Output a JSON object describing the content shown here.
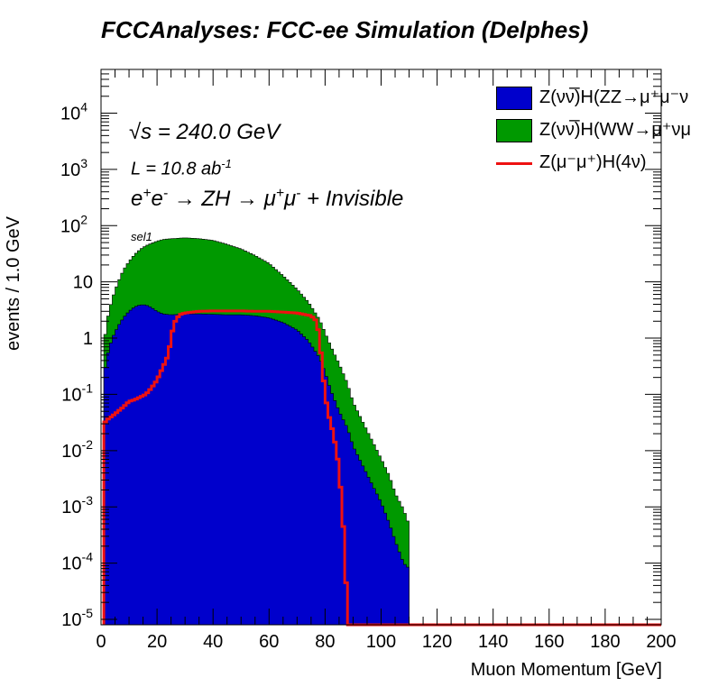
{
  "title": "FCCAnalyses: FCC-ee Simulation (Delphes)",
  "annotations": {
    "sqrt_s": "√s = 240.0 GeV",
    "lumi_text": "L = 10.8 ab",
    "lumi_exp": "-1",
    "process": {
      "e": "e",
      "ep": "+",
      "e2": "e",
      "em": "-",
      "arrow1": "→ ZH",
      "arrow2": "→ μ",
      "mp": "+",
      "mu": "μ",
      "mm": "-",
      "rest": "+ Invisible"
    },
    "selection": "sel1"
  },
  "legend": [
    {
      "label": "Z(νν̅)H(ZZ→μ⁺μ⁻ν",
      "color": "#0000cc",
      "style": "fill"
    },
    {
      "label": "Z(νν̅)H(WW→μ⁺νμ",
      "color": "#009900",
      "style": "fill"
    },
    {
      "label": "Z(μ⁻μ⁺)H(4ν)",
      "color": "#ee1111",
      "style": "line"
    }
  ],
  "chart_data": {
    "type": "area",
    "title": "FCCAnalyses: FCC-ee Simulation (Delphes)",
    "xlabel": "Muon Momentum [GeV]",
    "ylabel": "events / 1.0 GeV",
    "xlim": [
      0,
      200
    ],
    "ylim": [
      8e-06,
      60000
    ],
    "yscale": "log",
    "xticks": [
      "0",
      "20",
      "40",
      "60",
      "80",
      "100",
      "120",
      "140",
      "160",
      "180",
      "200"
    ],
    "yticks": [
      {
        "base": "10",
        "exp": "-5",
        "value": 1e-05
      },
      {
        "base": "10",
        "exp": "-4",
        "value": 0.0001
      },
      {
        "base": "10",
        "exp": "-3",
        "value": 0.001
      },
      {
        "base": "10",
        "exp": "-2",
        "value": 0.01
      },
      {
        "base": "10",
        "exp": "-1",
        "value": 0.1
      },
      {
        "base": "1",
        "exp": "",
        "value": 1
      },
      {
        "base": "10",
        "exp": "",
        "value": 10
      },
      {
        "base": "10",
        "exp": "2",
        "value": 100
      },
      {
        "base": "10",
        "exp": "3",
        "value": 1000
      },
      {
        "base": "10",
        "exp": "4",
        "value": 10000
      }
    ],
    "grid": false,
    "legend_position": "top-right",
    "stacked": true,
    "series": [
      {
        "name": "Z(νν̅)H(ZZ→μ⁺μ⁻ν",
        "color": "#0000cc",
        "x": [
          1,
          2,
          4,
          6,
          8,
          10,
          12,
          14,
          16,
          18,
          20,
          22,
          25,
          30,
          35,
          40,
          45,
          50,
          55,
          60,
          65,
          70,
          74,
          78,
          80,
          82,
          85,
          88,
          90,
          93,
          96,
          100,
          103,
          105,
          108,
          110
        ],
        "values": [
          0.2,
          0.45,
          1.0,
          1.6,
          2.3,
          3.0,
          3.6,
          3.9,
          3.9,
          3.5,
          3.0,
          2.7,
          2.6,
          2.7,
          2.7,
          2.65,
          2.6,
          2.6,
          2.5,
          2.3,
          1.9,
          1.4,
          0.9,
          0.45,
          0.25,
          0.12,
          0.05,
          0.025,
          0.012,
          0.006,
          0.003,
          0.0012,
          0.0005,
          0.00025,
          0.0001,
          8e-05
        ]
      },
      {
        "name": "Z(νν̅)H(WW→μ⁺νμ",
        "color": "#009900",
        "x": [
          1,
          2,
          4,
          6,
          8,
          10,
          12,
          14,
          16,
          18,
          20,
          22,
          25,
          30,
          35,
          40,
          45,
          50,
          55,
          60,
          65,
          70,
          74,
          78,
          80,
          82,
          85,
          88,
          90,
          93,
          96,
          100,
          103,
          105,
          108,
          110
        ],
        "values": [
          0.5,
          1.5,
          4.0,
          8.0,
          14,
          20,
          27,
          34,
          40,
          45,
          50,
          54,
          56,
          58,
          56,
          52,
          44,
          36,
          27,
          19,
          11,
          6.0,
          3.5,
          1.7,
          1.0,
          0.6,
          0.3,
          0.13,
          0.06,
          0.03,
          0.015,
          0.006,
          0.003,
          0.0015,
          0.0008,
          0.0004
        ]
      },
      {
        "name": "Z(μ⁻μ⁺)H(4ν)",
        "color": "#ee1111",
        "x": [
          1,
          2,
          5,
          8,
          10,
          12,
          14,
          16,
          18,
          20,
          22,
          24,
          25,
          26,
          27,
          28,
          30,
          35,
          40,
          45,
          50,
          55,
          60,
          65,
          70,
          75,
          77,
          78,
          79,
          80,
          81,
          82,
          83,
          84,
          85,
          86,
          87,
          88
        ],
        "values": [
          0.03,
          0.035,
          0.045,
          0.06,
          0.075,
          0.08,
          0.09,
          0.1,
          0.13,
          0.18,
          0.3,
          0.5,
          1.0,
          1.8,
          2.2,
          2.6,
          2.8,
          3.0,
          3.05,
          3.05,
          3.05,
          3.0,
          3.0,
          2.9,
          2.8,
          2.5,
          2.0,
          1.0,
          0.3,
          0.1,
          0.05,
          0.03,
          0.02,
          0.01,
          0.005,
          0.001,
          0.0002,
          1e-05
        ]
      }
    ]
  }
}
